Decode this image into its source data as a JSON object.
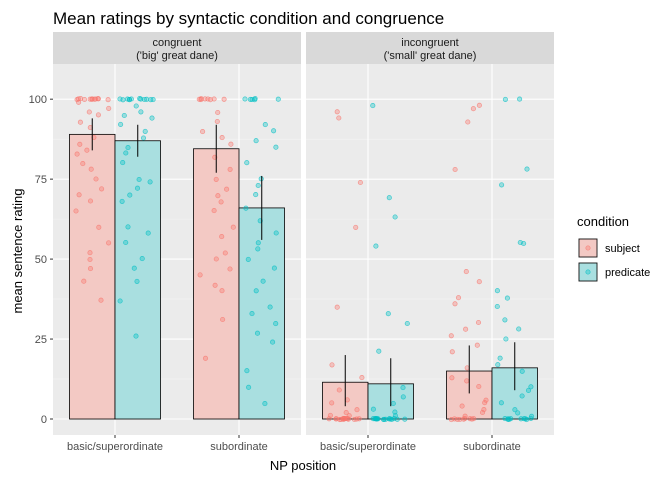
{
  "chart_data": {
    "type": "bar",
    "title": "Mean ratings by syntactic condition and congruence",
    "xlabel": "NP position",
    "ylabel": "mean sentence rating",
    "ylim": [
      -5,
      111
    ],
    "yticks": [
      0,
      25,
      50,
      75,
      100
    ],
    "grid": true,
    "categories": [
      "basic/superordinate",
      "subordinate"
    ],
    "legend": {
      "title": "condition",
      "position": "right",
      "entries": [
        {
          "name": "subject",
          "point_color": "#F8766D",
          "fill_color": "#F3C9C4"
        },
        {
          "name": "predicate",
          "point_color": "#00BFC4",
          "fill_color": "#A9DFE0"
        }
      ]
    },
    "panels": [
      {
        "label_line1": "congruent",
        "label_line2": "('big' great dane)",
        "bars": [
          {
            "category": "basic/superordinate",
            "series": "subject",
            "value": 89,
            "ci": [
              84,
              94
            ]
          },
          {
            "category": "basic/superordinate",
            "series": "predicate",
            "value": 87,
            "ci": [
              82,
              92
            ]
          },
          {
            "category": "subordinate",
            "series": "subject",
            "value": 84.5,
            "ci": [
              77,
              92
            ]
          },
          {
            "category": "subordinate",
            "series": "predicate",
            "value": 66,
            "ci": [
              56,
              76
            ]
          }
        ],
        "points": [
          {
            "category": "basic/superordinate",
            "series": "subject",
            "values": [
              100,
              100,
              100,
              100,
              100,
              100,
              100,
              100,
              100,
              100,
              100,
              100,
              99,
              97,
              96,
              95,
              93,
              91,
              88,
              86,
              84,
              83,
              80,
              78,
              75,
              72,
              70,
              68,
              65,
              60,
              55,
              52,
              50,
              47,
              43,
              37
            ]
          },
          {
            "category": "basic/superordinate",
            "series": "predicate",
            "values": [
              100,
              100,
              100,
              100,
              100,
              100,
              100,
              100,
              100,
              100,
              100,
              100,
              98,
              96,
              95,
              94,
              92,
              90,
              88,
              85,
              83,
              80,
              75,
              74,
              72,
              70,
              68,
              60,
              58,
              55,
              50,
              47,
              43,
              37,
              26
            ]
          },
          {
            "category": "subordinate",
            "series": "subject",
            "values": [
              100,
              100,
              100,
              100,
              100,
              100,
              100,
              100,
              96,
              93,
              90,
              88,
              86,
              82,
              78,
              75,
              72,
              70,
              68,
              65,
              60,
              57,
              52,
              50,
              47,
              45,
              42,
              40,
              31,
              19
            ]
          },
          {
            "category": "subordinate",
            "series": "predicate",
            "values": [
              100,
              100,
              100,
              100,
              100,
              100,
              92,
              90,
              87,
              85,
              80,
              75,
              73,
              70,
              66,
              62,
              58,
              55,
              53,
              50,
              47,
              43,
              40,
              35,
              33,
              30,
              27,
              24,
              15,
              10,
              5
            ]
          }
        ]
      },
      {
        "label_line1": "incongruent",
        "label_line2": "('small' great dane)",
        "bars": [
          {
            "category": "basic/superordinate",
            "series": "subject",
            "value": 11.5,
            "ci": [
              4,
              20
            ]
          },
          {
            "category": "basic/superordinate",
            "series": "predicate",
            "value": 11,
            "ci": [
              4,
              19
            ]
          },
          {
            "category": "subordinate",
            "series": "subject",
            "value": 15,
            "ci": [
              8,
              23
            ]
          },
          {
            "category": "subordinate",
            "series": "predicate",
            "value": 16,
            "ci": [
              9,
              24
            ]
          }
        ],
        "points": [
          {
            "category": "basic/superordinate",
            "series": "subject",
            "values": [
              96,
              94,
              74,
              60,
              35,
              17,
              13,
              9,
              6,
              5,
              3,
              2,
              1,
              1,
              0,
              0,
              0,
              0,
              0,
              0,
              0,
              0,
              0,
              0,
              0,
              0,
              0,
              0,
              0,
              0
            ]
          },
          {
            "category": "basic/superordinate",
            "series": "predicate",
            "values": [
              98,
              69,
              63,
              54,
              33,
              30,
              21,
              10,
              7,
              5,
              3,
              2,
              1,
              0,
              0,
              0,
              0,
              0,
              0,
              0,
              0,
              0,
              0,
              0,
              0,
              0,
              0,
              0,
              0,
              0,
              0
            ]
          },
          {
            "category": "subordinate",
            "series": "subject",
            "values": [
              98,
              97,
              93,
              78,
              46,
              43,
              38,
              36,
              30,
              28,
              26,
              23,
              21,
              16,
              13,
              12,
              10,
              6,
              5,
              4,
              3,
              2,
              1,
              0,
              0,
              0,
              0,
              0,
              0,
              0,
              0,
              0
            ]
          },
          {
            "category": "subordinate",
            "series": "predicate",
            "values": [
              100,
              100,
              78,
              73,
              55,
              55,
              40,
              38,
              35,
              31,
              28,
              25,
              19,
              17,
              15,
              10,
              9,
              7,
              5,
              3,
              2,
              1,
              0,
              0,
              0,
              0,
              0,
              0,
              0,
              0,
              0,
              0
            ]
          }
        ]
      }
    ]
  }
}
